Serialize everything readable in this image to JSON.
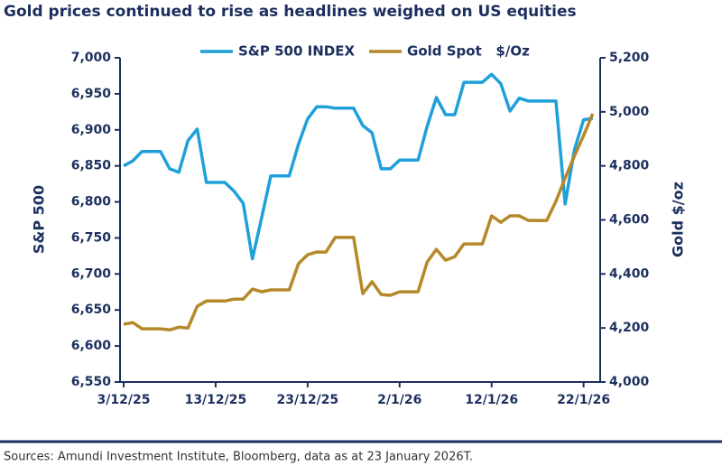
{
  "chart_data": {
    "type": "line",
    "title": "Gold prices continued to rise as headlines weighed on US equities",
    "source": "Sources: Amundi Investment Institute, Bloomberg, data as at 23 January 2026T.",
    "ylabel": "S&P 500",
    "y2label": "Gold $/oz",
    "x": [
      "3/12/25",
      "4/12/25",
      "5/12/25",
      "6/12/25",
      "7/12/25",
      "8/12/25",
      "9/12/25",
      "10/12/25",
      "11/12/25",
      "12/12/25",
      "13/12/25",
      "14/12/25",
      "15/12/25",
      "16/12/25",
      "17/12/25",
      "18/12/25",
      "19/12/25",
      "20/12/25",
      "21/12/25",
      "22/12/25",
      "23/12/25",
      "24/12/25",
      "25/12/25",
      "26/12/25",
      "27/12/25",
      "28/12/25",
      "29/12/25",
      "30/12/25",
      "31/12/25",
      "1/1/26",
      "2/1/26",
      "3/1/26",
      "4/1/26",
      "5/1/26",
      "6/1/26",
      "7/1/26",
      "8/1/26",
      "9/1/26",
      "10/1/26",
      "11/1/26",
      "12/1/26",
      "13/1/26",
      "14/1/26",
      "15/1/26",
      "16/1/26",
      "17/1/26",
      "18/1/26",
      "19/1/26",
      "20/1/26",
      "21/1/26",
      "22/1/26",
      "23/1/26"
    ],
    "xlim": [
      "3/12/25",
      "24/1/26"
    ],
    "xticks": [
      "3/12/25",
      "13/12/25",
      "23/12/25",
      "2/1/26",
      "12/1/26",
      "22/1/26"
    ],
    "series": [
      {
        "name": "S&P 500 INDEX",
        "color": "#1fa0db",
        "axis": "y",
        "values": [
          6850,
          6857,
          6870,
          6870,
          6870,
          6846,
          6841,
          6885,
          6901,
          6827,
          6827,
          6827,
          6815,
          6798,
          6721,
          6778,
          6836,
          6836,
          6836,
          6880,
          6915,
          6932,
          6932,
          6930,
          6930,
          6930,
          6906,
          6896,
          6846,
          6846,
          6858,
          6858,
          6858,
          6905,
          6945,
          6921,
          6921,
          6966,
          6966,
          6966,
          6977,
          6964,
          6926,
          6944,
          6940,
          6940,
          6940,
          6940,
          6797,
          6872,
          6914,
          6916
        ]
      },
      {
        "name": "Gold Spot   $/Oz",
        "color": "#b5892a",
        "axis": "y2",
        "values": [
          4214,
          4220,
          4197,
          4197,
          4197,
          4193,
          4203,
          4200,
          4280,
          4300,
          4300,
          4300,
          4307,
          4307,
          4344,
          4334,
          4341,
          4341,
          4341,
          4438,
          4471,
          4481,
          4481,
          4535,
          4535,
          4535,
          4327,
          4371,
          4324,
          4321,
          4334,
          4334,
          4334,
          4444,
          4491,
          4451,
          4464,
          4511,
          4511,
          4511,
          4615,
          4591,
          4615,
          4615,
          4598,
          4598,
          4598,
          4669,
          4755,
          4836,
          4912,
          4993
        ]
      }
    ],
    "ylim": [
      6550,
      7000
    ],
    "yticks": [
      {
        "value": 6550,
        "label": "6,550"
      },
      {
        "value": 6600,
        "label": "6,600"
      },
      {
        "value": 6650,
        "label": "6,650"
      },
      {
        "value": 6700,
        "label": "6,700"
      },
      {
        "value": 6750,
        "label": "6,750"
      },
      {
        "value": 6800,
        "label": "6,800"
      },
      {
        "value": 6850,
        "label": "6,850"
      },
      {
        "value": 6900,
        "label": "6,900"
      },
      {
        "value": 6950,
        "label": "6,950"
      },
      {
        "value": 7000,
        "label": "7,000"
      }
    ],
    "y2lim": [
      4000,
      5200
    ],
    "y2ticks": [
      {
        "value": 4000,
        "label": "4,000"
      },
      {
        "value": 4200,
        "label": "4,200"
      },
      {
        "value": 4400,
        "label": "4,400"
      },
      {
        "value": 4600,
        "label": "4,600"
      },
      {
        "value": 4800,
        "label": "4,800"
      },
      {
        "value": 5000,
        "label": "5,000"
      },
      {
        "value": 5200,
        "label": "5,200"
      }
    ],
    "legend": "top"
  }
}
